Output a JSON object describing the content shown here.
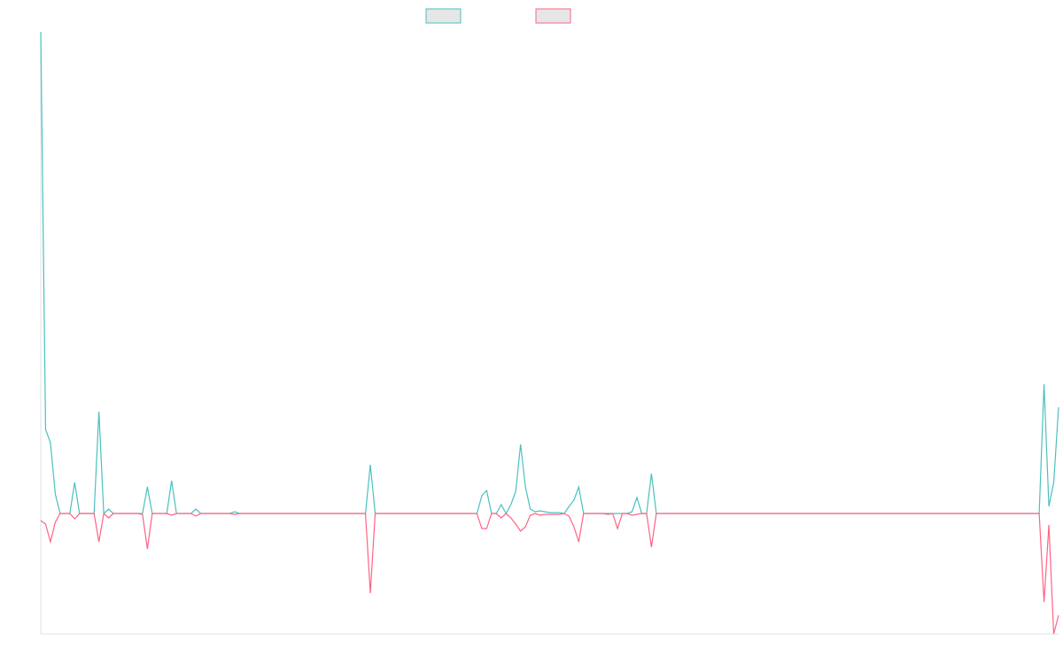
{
  "chart_data": {
    "type": "line",
    "ylim": [
      -136,
      544
    ],
    "axis_color": "#e0e0e0",
    "series": [
      {
        "color": "#4bc0c0",
        "values": [
          544,
          95,
          80,
          22,
          0,
          0,
          0,
          35,
          0,
          0,
          0,
          0,
          115,
          0,
          5,
          0,
          0,
          0,
          0,
          0,
          0,
          0,
          30,
          0,
          0,
          0,
          0,
          37,
          0,
          0,
          0,
          0,
          5,
          0,
          0,
          0,
          0,
          0,
          0,
          0,
          2,
          0,
          0,
          0,
          0,
          0,
          0,
          0,
          0,
          0,
          0,
          0,
          0,
          0,
          0,
          0,
          0,
          0,
          0,
          0,
          0,
          0,
          0,
          0,
          0,
          0,
          0,
          0,
          55,
          0,
          0,
          0,
          0,
          0,
          0,
          0,
          0,
          0,
          0,
          0,
          0,
          0,
          0,
          0,
          0,
          0,
          0,
          0,
          0,
          0,
          0,
          20,
          26,
          0,
          0,
          10,
          0,
          10,
          25,
          78,
          30,
          5,
          2,
          3,
          2,
          1,
          1,
          1,
          0,
          8,
          15,
          30,
          0,
          0,
          0,
          0,
          0,
          0,
          0,
          0,
          0,
          0,
          2,
          18,
          0,
          0,
          45,
          0,
          0,
          0,
          0,
          0,
          0,
          0,
          0,
          0,
          0,
          0,
          0,
          0,
          0,
          0,
          0,
          0,
          0,
          0,
          0,
          0,
          0,
          0,
          0,
          0,
          0,
          0,
          0,
          0,
          0,
          0,
          0,
          0,
          0,
          0,
          0,
          0,
          0,
          0,
          0,
          0,
          0,
          0,
          0,
          0,
          0,
          0,
          0,
          0,
          0,
          0,
          0,
          0,
          0,
          0,
          0,
          0,
          0,
          0,
          0,
          0,
          0,
          0,
          0,
          0,
          0,
          0,
          0,
          0,
          0,
          0,
          0,
          0,
          0,
          0,
          0,
          0,
          0,
          0,
          0,
          146,
          8,
          35,
          120
        ]
      },
      {
        "color": "#ff6384",
        "values": [
          -8,
          -12,
          -32,
          -10,
          0,
          0,
          0,
          -6,
          0,
          0,
          0,
          0,
          -32,
          0,
          -5,
          0,
          0,
          0,
          0,
          0,
          0,
          -1,
          -40,
          0,
          0,
          0,
          0,
          -2,
          0,
          0,
          0,
          0,
          -3,
          0,
          0,
          0,
          0,
          0,
          0,
          0,
          -1,
          0,
          0,
          0,
          0,
          0,
          0,
          0,
          0,
          0,
          0,
          0,
          0,
          0,
          0,
          0,
          0,
          0,
          0,
          0,
          0,
          0,
          0,
          0,
          0,
          0,
          0,
          0,
          -90,
          0,
          0,
          0,
          0,
          0,
          0,
          0,
          0,
          0,
          0,
          0,
          0,
          0,
          0,
          0,
          0,
          0,
          0,
          0,
          0,
          0,
          0,
          -17,
          -17,
          0,
          0,
          -5,
          0,
          -5,
          -12,
          -20,
          -15,
          -2,
          0,
          -2,
          -1,
          -1,
          -1,
          -1,
          0,
          -3,
          -15,
          -32,
          0,
          0,
          0,
          0,
          0,
          -1,
          0,
          -17,
          0,
          0,
          -2,
          -1,
          0,
          0,
          -38,
          0,
          0,
          0,
          0,
          0,
          0,
          0,
          0,
          0,
          0,
          0,
          0,
          0,
          0,
          0,
          0,
          0,
          0,
          0,
          0,
          0,
          0,
          0,
          0,
          0,
          0,
          0,
          0,
          0,
          0,
          0,
          0,
          0,
          0,
          0,
          0,
          0,
          0,
          0,
          0,
          0,
          0,
          0,
          0,
          0,
          0,
          0,
          0,
          0,
          0,
          0,
          0,
          0,
          0,
          0,
          0,
          0,
          0,
          0,
          0,
          0,
          0,
          0,
          0,
          0,
          0,
          0,
          0,
          0,
          0,
          0,
          0,
          0,
          0,
          0,
          0,
          0,
          0,
          0,
          0,
          -100,
          -13,
          -136,
          -115
        ]
      }
    ]
  }
}
